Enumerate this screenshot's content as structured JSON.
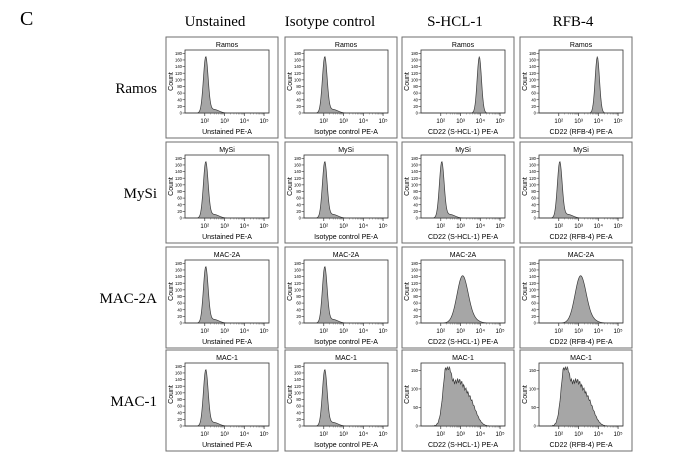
{
  "figure": {
    "panel_letter": "C",
    "columns": [
      "Unstained",
      "Isotype control",
      "S-HCL-1",
      "RFB-4"
    ],
    "rows": [
      "Ramos",
      "MySi",
      "MAC-2A",
      "MAC-1"
    ]
  },
  "chart_data": {
    "type": "area",
    "description_axes": {
      "ylabel": "Count",
      "xscale": "log",
      "xlim": [
        10,
        100000
      ],
      "xticks": [
        "10²",
        "10³",
        "10⁴",
        "10⁵"
      ],
      "yticks_default": [
        "0",
        "20",
        "40",
        "60",
        "80",
        "100",
        "120",
        "140",
        "160",
        "180"
      ],
      "yticks_mac1_stained": [
        "0",
        "50",
        "100",
        "150"
      ]
    },
    "fill_color": "#a6a6a6",
    "panels": [
      {
        "row": "Ramos",
        "title": "Ramos",
        "xlabel": "Unstained PE-A",
        "ymax": 180,
        "profile": "neg"
      },
      {
        "row": "Ramos",
        "title": "Ramos",
        "xlabel": "Isotype control PE-A",
        "ymax": 180,
        "profile": "neg"
      },
      {
        "row": "Ramos",
        "title": "Ramos",
        "xlabel": "CD22 (S-HCL-1) PE-A",
        "ymax": 180,
        "profile": "high"
      },
      {
        "row": "Ramos",
        "title": "Ramos",
        "xlabel": "CD22 (RFB-4) PE-A",
        "ymax": 180,
        "profile": "high"
      },
      {
        "row": "MySi",
        "title": "MySi",
        "xlabel": "Unstained PE-A",
        "ymax": 180,
        "profile": "neg"
      },
      {
        "row": "MySi",
        "title": "MySi",
        "xlabel": "Isotype control PE-A",
        "ymax": 180,
        "profile": "neg"
      },
      {
        "row": "MySi",
        "title": "MySi",
        "xlabel": "CD22 (S-HCL-1) PE-A",
        "ymax": 180,
        "profile": "neg"
      },
      {
        "row": "MySi",
        "title": "MySi",
        "xlabel": "CD22 (RFB-4) PE-A",
        "ymax": 180,
        "profile": "neg"
      },
      {
        "row": "MAC-2A",
        "title": "MAC-2A",
        "xlabel": "Unstained PE-A",
        "ymax": 180,
        "profile": "neg"
      },
      {
        "row": "MAC-2A",
        "title": "MAC-2A",
        "xlabel": "Isotype control PE-A",
        "ymax": 180,
        "profile": "neg"
      },
      {
        "row": "MAC-2A",
        "title": "MAC-2A",
        "xlabel": "CD22 (S-HCL-1) PE-A",
        "ymax": 180,
        "profile": "mid"
      },
      {
        "row": "MAC-2A",
        "title": "MAC-2A",
        "xlabel": "CD22 (RFB-4) PE-A",
        "ymax": 180,
        "profile": "mid"
      },
      {
        "row": "MAC-1",
        "title": "MAC-1",
        "xlabel": "Unstained PE-A",
        "ymax": 180,
        "profile": "neg"
      },
      {
        "row": "MAC-1",
        "title": "MAC-1",
        "xlabel": "Isotype control PE-A",
        "ymax": 180,
        "profile": "neg"
      },
      {
        "row": "MAC-1",
        "title": "MAC-1",
        "xlabel": "CD22 (S-HCL-1) PE-A",
        "ymax": 160,
        "profile": "broad"
      },
      {
        "row": "MAC-1",
        "title": "MAC-1",
        "xlabel": "CD22 (RFB-4) PE-A",
        "ymax": 160,
        "profile": "broad"
      }
    ]
  }
}
